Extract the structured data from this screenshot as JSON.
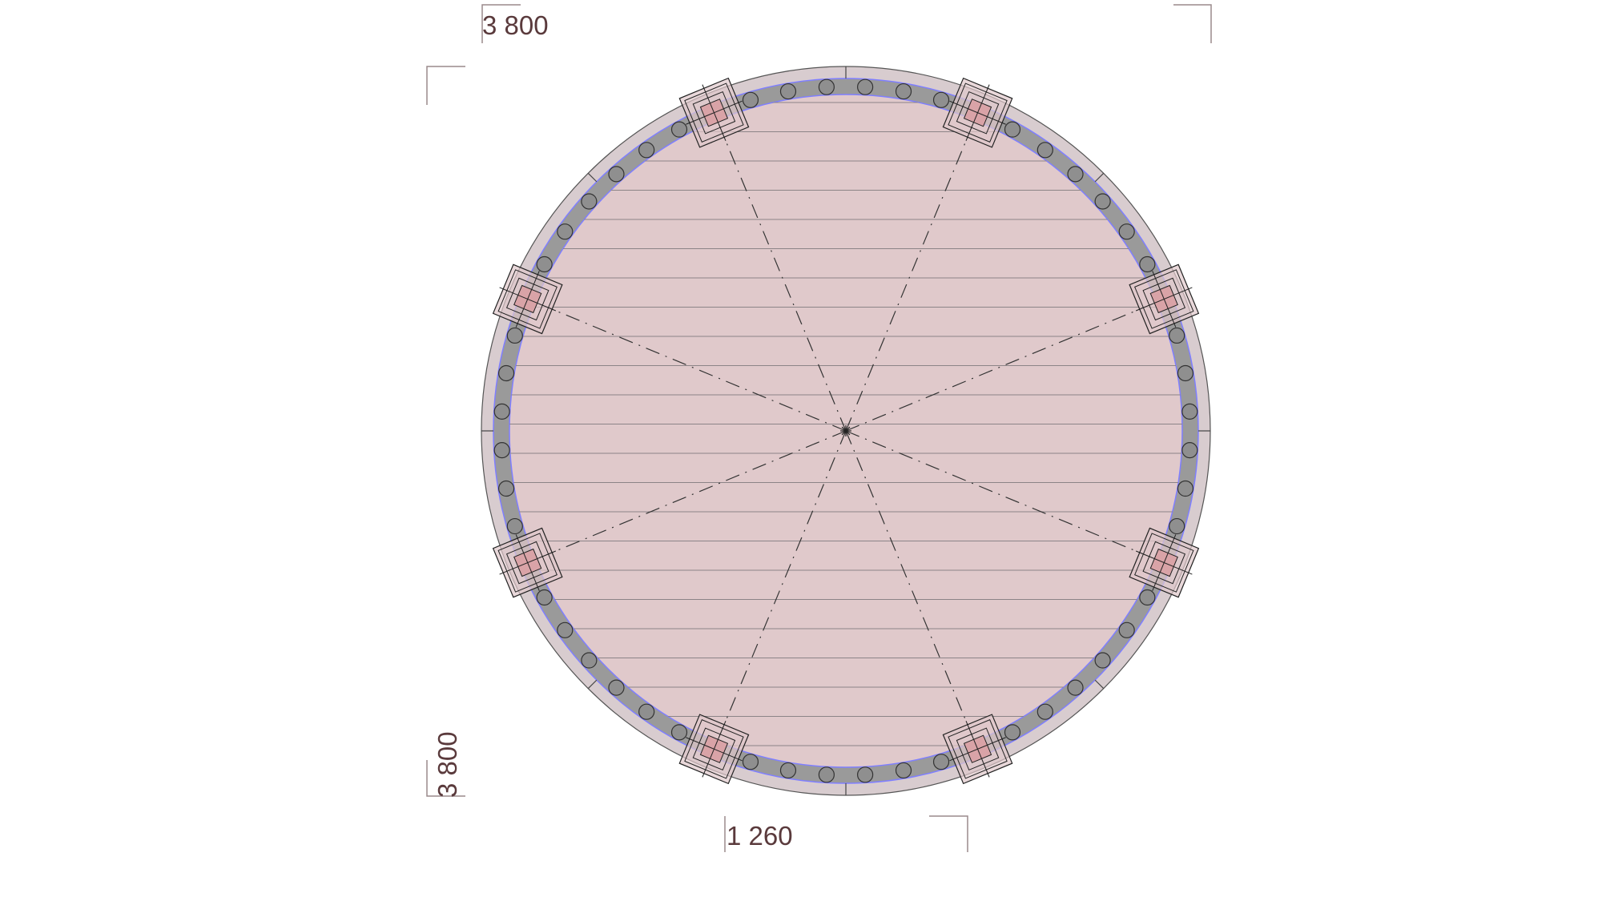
{
  "dimensions": {
    "top_width": "3 800",
    "left_height": "3 800",
    "bottom_span": "1 260"
  },
  "plan": {
    "post_count": 8,
    "balusters_per_bay": 6
  },
  "colors": {
    "floor": "#e0c9cb",
    "outer_rim": "#d8cccf",
    "beam_band": "#9a9a9a",
    "beam_edge": "#7f7fff",
    "post_core": "#d9a3a7",
    "line": "#333333",
    "dim_text": "#5a3a3c",
    "dim_line": "#9a8a8c"
  }
}
